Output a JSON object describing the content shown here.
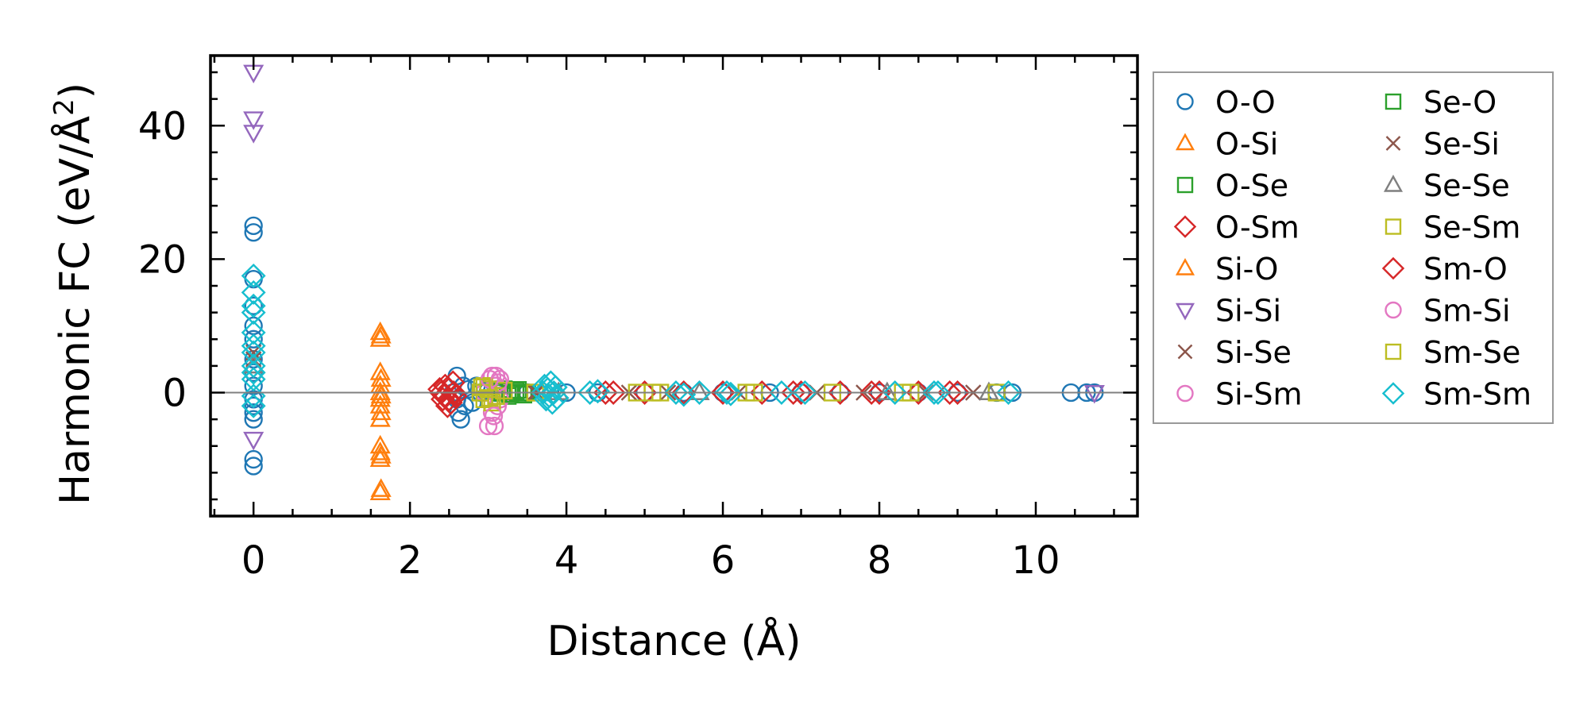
{
  "chart_data": {
    "type": "scatter",
    "title": "",
    "xlabel": "Distance (Å)",
    "ylabel_main": "Harmonic FC (eV/Å",
    "ylabel_sup": "2",
    "ylabel_close": ")",
    "xlim": [
      -0.55,
      11.3
    ],
    "ylim": [
      -18.5,
      50.5
    ],
    "xticks": [
      0,
      2,
      4,
      6,
      8,
      10
    ],
    "xtick_labels": [
      "0",
      "2",
      "4",
      "6",
      "8",
      "10"
    ],
    "yticks": [
      0,
      20,
      40
    ],
    "ytick_labels": [
      "0",
      "20",
      "40"
    ],
    "zero_line": true,
    "grid": false,
    "legend_position": "outside-right",
    "series": [
      {
        "name": "O-O",
        "marker": "circle",
        "color": "#1f77b4",
        "points": [
          [
            0,
            25
          ],
          [
            0,
            24
          ],
          [
            0,
            17
          ],
          [
            0,
            13
          ],
          [
            0,
            10
          ],
          [
            0,
            8
          ],
          [
            0,
            5
          ],
          [
            0,
            3
          ],
          [
            0,
            1
          ],
          [
            0,
            -1
          ],
          [
            0,
            -2
          ],
          [
            0,
            -3
          ],
          [
            0,
            -4
          ],
          [
            0,
            -10
          ],
          [
            0,
            -11
          ],
          [
            2.55,
            0
          ],
          [
            2.6,
            2.5
          ],
          [
            2.6,
            -1
          ],
          [
            2.62,
            -3
          ],
          [
            2.65,
            -4
          ],
          [
            2.68,
            1
          ],
          [
            2.7,
            -2
          ],
          [
            2.75,
            0.5
          ],
          [
            2.8,
            -1.5
          ],
          [
            2.85,
            1
          ],
          [
            2.9,
            0
          ],
          [
            3.0,
            0.3
          ],
          [
            3.1,
            0
          ],
          [
            3.3,
            0
          ],
          [
            3.5,
            0
          ],
          [
            4.0,
            0
          ],
          [
            4.4,
            0
          ],
          [
            5.0,
            0
          ],
          [
            5.5,
            0
          ],
          [
            6.0,
            0
          ],
          [
            6.6,
            0
          ],
          [
            7.0,
            0
          ],
          [
            7.5,
            0
          ],
          [
            8.0,
            0
          ],
          [
            8.5,
            0
          ],
          [
            9.0,
            0
          ],
          [
            9.5,
            0
          ],
          [
            9.7,
            0
          ],
          [
            10.45,
            0
          ],
          [
            10.65,
            0
          ],
          [
            10.75,
            0
          ]
        ]
      },
      {
        "name": "O-Si",
        "marker": "triangle-up",
        "color": "#ff7f0e",
        "points": [
          [
            1.62,
            9
          ],
          [
            1.62,
            8
          ],
          [
            1.62,
            3
          ],
          [
            1.62,
            1
          ],
          [
            1.62,
            0
          ],
          [
            1.62,
            -1
          ],
          [
            1.62,
            -2
          ],
          [
            1.62,
            -4
          ],
          [
            1.62,
            -8
          ],
          [
            1.62,
            -9
          ],
          [
            1.62,
            -10
          ],
          [
            1.62,
            -15
          ]
        ]
      },
      {
        "name": "O-Se",
        "marker": "square",
        "color": "#2ca02c",
        "points": [
          [
            3.15,
            0
          ],
          [
            3.2,
            0.5
          ],
          [
            3.25,
            -0.5
          ],
          [
            3.3,
            0
          ],
          [
            3.35,
            0.3
          ],
          [
            3.4,
            0
          ],
          [
            3.45,
            -0.3
          ],
          [
            3.5,
            0
          ]
        ]
      },
      {
        "name": "O-Sm",
        "marker": "diamond",
        "color": "#d62728",
        "points": [
          [
            2.4,
            0
          ],
          [
            2.42,
            -1
          ],
          [
            2.45,
            1
          ],
          [
            2.48,
            -2
          ],
          [
            2.5,
            0.5
          ],
          [
            2.52,
            -1.5
          ],
          [
            2.55,
            1.5
          ],
          [
            2.58,
            -0.5
          ],
          [
            4.5,
            0
          ],
          [
            5.0,
            0
          ],
          [
            5.5,
            0
          ],
          [
            6.0,
            0
          ],
          [
            6.5,
            0
          ],
          [
            7.0,
            0
          ],
          [
            7.5,
            0
          ],
          [
            8.0,
            0
          ],
          [
            8.5,
            0
          ],
          [
            9.0,
            0
          ]
        ]
      },
      {
        "name": "Si-O",
        "marker": "triangle-up",
        "color": "#ff7f0e",
        "points": [
          [
            1.63,
            8.5
          ],
          [
            1.63,
            2
          ],
          [
            1.63,
            -0.5
          ],
          [
            1.63,
            -3
          ],
          [
            1.63,
            -9.5
          ],
          [
            1.63,
            -14.5
          ]
        ]
      },
      {
        "name": "Si-Si",
        "marker": "triangle-down",
        "color": "#9467bd",
        "points": [
          [
            0,
            48
          ],
          [
            0,
            41
          ],
          [
            0,
            39
          ],
          [
            0,
            -7
          ],
          [
            10.75,
            0
          ]
        ]
      },
      {
        "name": "Si-Se",
        "marker": "x",
        "color": "#8c564b",
        "points": [
          [
            0,
            6
          ],
          [
            0,
            5
          ],
          [
            3.6,
            0
          ],
          [
            4.8,
            0
          ],
          [
            6.2,
            0
          ],
          [
            7.8,
            0
          ],
          [
            9.2,
            0
          ]
        ]
      },
      {
        "name": "Si-Sm",
        "marker": "circle",
        "color": "#e377c2",
        "points": [
          [
            2.95,
            0
          ],
          [
            3.0,
            -5
          ],
          [
            3.05,
            2.5
          ],
          [
            3.05,
            -3
          ],
          [
            3.08,
            -5
          ],
          [
            3.1,
            2.5
          ],
          [
            3.1,
            1
          ],
          [
            3.12,
            -2
          ],
          [
            3.12,
            0.5
          ],
          [
            3.15,
            -1
          ],
          [
            3.15,
            2
          ]
        ]
      },
      {
        "name": "Se-O",
        "marker": "square",
        "color": "#2ca02c",
        "points": [
          [
            3.18,
            0.2
          ],
          [
            3.28,
            -0.2
          ],
          [
            3.38,
            0.4
          ],
          [
            3.48,
            0
          ]
        ]
      },
      {
        "name": "Se-Si",
        "marker": "x",
        "color": "#8c564b",
        "points": [
          [
            3.62,
            0
          ],
          [
            5.3,
            0
          ],
          [
            7.2,
            0
          ],
          [
            8.6,
            0
          ]
        ]
      },
      {
        "name": "Se-Se",
        "marker": "triangle-up",
        "color": "#7f7f7f",
        "points": [
          [
            0,
            4
          ],
          [
            3.9,
            0
          ],
          [
            5.7,
            0
          ],
          [
            8.1,
            0
          ],
          [
            9.4,
            0
          ]
        ]
      },
      {
        "name": "Se-Sm",
        "marker": "square",
        "color": "#bcbd22",
        "points": [
          [
            2.9,
            0
          ],
          [
            2.95,
            -1
          ],
          [
            2.95,
            1
          ],
          [
            3.0,
            0.5
          ],
          [
            3.05,
            -1.5
          ],
          [
            3.1,
            -0.5
          ],
          [
            3.2,
            0.3
          ],
          [
            3.6,
            0
          ],
          [
            4.9,
            0
          ],
          [
            5.2,
            0
          ],
          [
            6.3,
            0
          ],
          [
            7.4,
            0
          ],
          [
            8.3,
            0
          ],
          [
            9.5,
            0
          ]
        ]
      },
      {
        "name": "Sm-O",
        "marker": "diamond",
        "color": "#d62728",
        "points": [
          [
            2.38,
            0.5
          ],
          [
            2.44,
            -0.5
          ],
          [
            2.5,
            -1
          ],
          [
            2.56,
            0
          ],
          [
            4.6,
            0
          ],
          [
            6.9,
            0
          ],
          [
            7.9,
            0
          ],
          [
            8.9,
            0
          ]
        ]
      },
      {
        "name": "Sm-Si",
        "marker": "circle",
        "color": "#e377c2",
        "points": [
          [
            3.02,
            2
          ],
          [
            3.07,
            -3.5
          ],
          [
            3.13,
            1.5
          ]
        ]
      },
      {
        "name": "Sm-Se",
        "marker": "square",
        "color": "#bcbd22",
        "points": [
          [
            2.92,
            0.8
          ],
          [
            3.02,
            -0.8
          ],
          [
            5.1,
            0
          ],
          [
            6.4,
            0
          ],
          [
            8.4,
            0
          ]
        ]
      },
      {
        "name": "Sm-Sm",
        "marker": "diamond",
        "color": "#17becf",
        "points": [
          [
            0,
            17.5
          ],
          [
            0,
            15
          ],
          [
            0,
            13
          ],
          [
            0,
            12
          ],
          [
            0,
            9
          ],
          [
            0,
            7
          ],
          [
            0,
            6
          ],
          [
            0,
            4
          ],
          [
            0,
            3
          ],
          [
            0,
            2
          ],
          [
            0,
            -0.5
          ],
          [
            0,
            -2
          ],
          [
            3.7,
            0
          ],
          [
            3.72,
            1
          ],
          [
            3.74,
            -1
          ],
          [
            3.76,
            0.5
          ],
          [
            3.78,
            -0.5
          ],
          [
            3.8,
            1.5
          ],
          [
            3.82,
            -1.5
          ],
          [
            3.84,
            0
          ],
          [
            3.86,
            0.8
          ],
          [
            3.88,
            -0.8
          ],
          [
            4.3,
            0
          ],
          [
            4.4,
            0.2
          ],
          [
            5.4,
            0
          ],
          [
            5.5,
            -0.3
          ],
          [
            5.7,
            0
          ],
          [
            6.05,
            0
          ],
          [
            6.1,
            -0.2
          ],
          [
            6.75,
            0
          ],
          [
            7.05,
            0
          ],
          [
            8.2,
            0
          ],
          [
            8.7,
            0
          ],
          [
            8.75,
            0
          ],
          [
            9.65,
            0
          ]
        ]
      }
    ]
  }
}
